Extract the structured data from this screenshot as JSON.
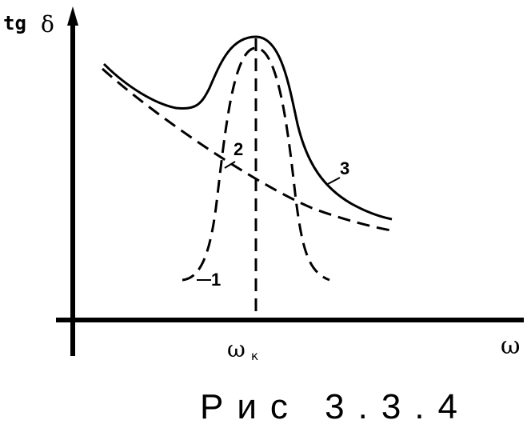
{
  "figure": {
    "y_axis_label": "tg",
    "y_axis_symbol": "δ",
    "x_axis_label": "ω",
    "peak_label": "ω",
    "peak_label_sub": "к",
    "curve_labels": [
      "1",
      "2",
      "3"
    ],
    "caption": "Рис 3.3.4"
  }
}
